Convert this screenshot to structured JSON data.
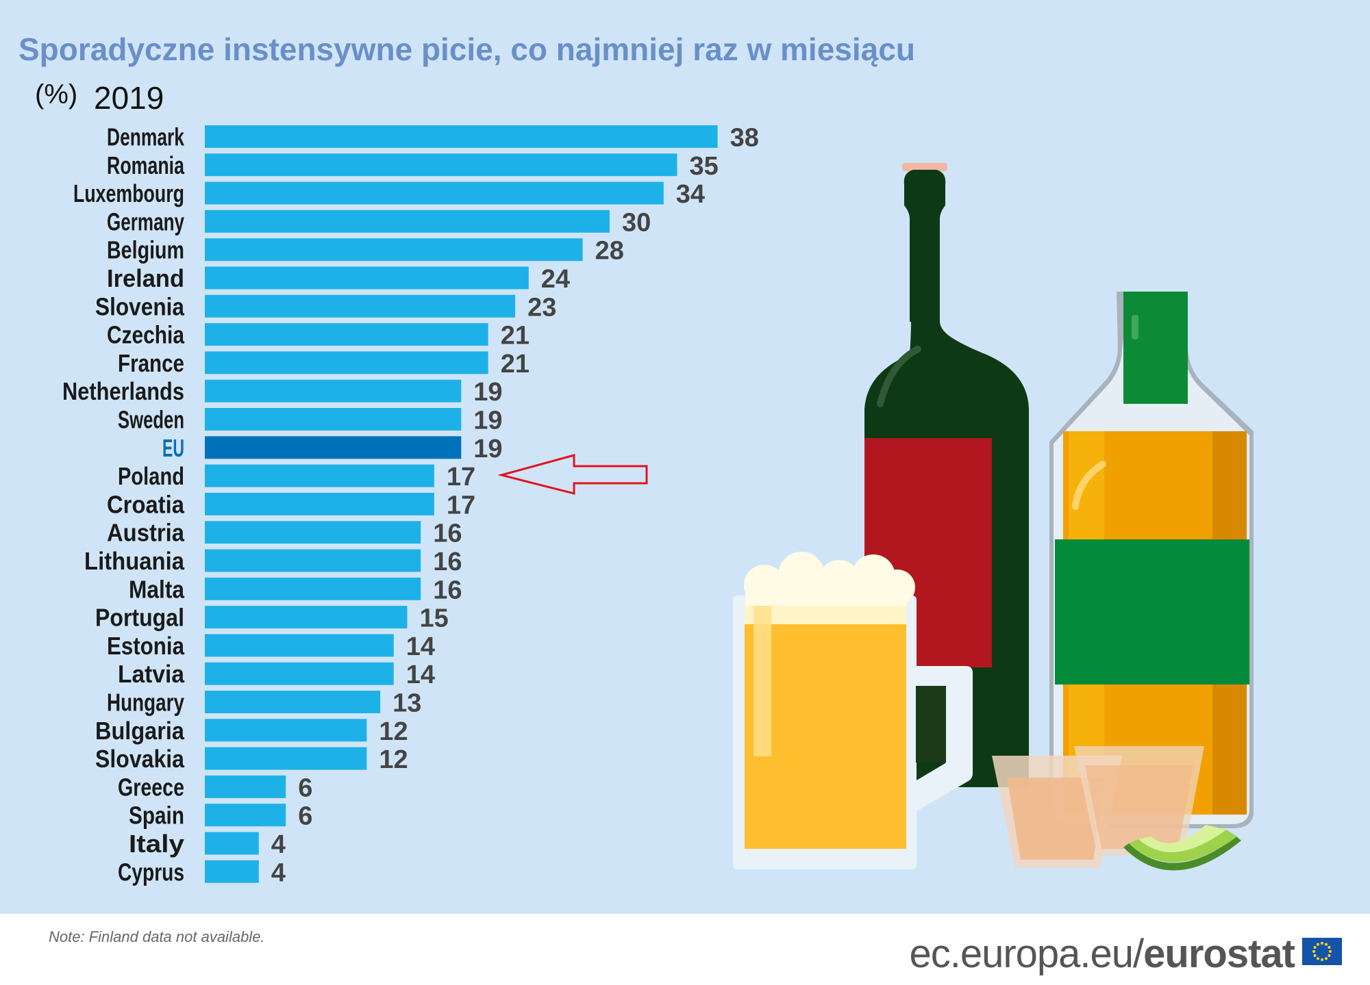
{
  "chart_data": {
    "type": "bar",
    "orientation": "horizontal",
    "title": "Sporadyczne instensywne picie, co najmniej raz w miesiącu",
    "unit": "(%)",
    "year": "2019",
    "categories": [
      "Denmark",
      "Romania",
      "Luxembourg",
      "Germany",
      "Belgium",
      "Ireland",
      "Slovenia",
      "Czechia",
      "France",
      "Netherlands",
      "Sweden",
      "EU",
      "Poland",
      "Croatia",
      "Austria",
      "Lithuania",
      "Malta",
      "Portugal",
      "Estonia",
      "Latvia",
      "Hungary",
      "Bulgaria",
      "Slovakia",
      "Greece",
      "Spain",
      "Italy",
      "Cyprus"
    ],
    "values": [
      38,
      35,
      34,
      30,
      28,
      24,
      23,
      21,
      21,
      19,
      19,
      19,
      17,
      17,
      16,
      16,
      16,
      15,
      14,
      14,
      13,
      12,
      12,
      6,
      6,
      4,
      4
    ],
    "highlight": "EU",
    "arrow_target": "Poland",
    "colors": {
      "bar": "#1eb1e7",
      "bar_highlight": "#0071bb",
      "highlight_label": "#0a6eb4",
      "arrow": "#e0141e",
      "title": "#6a8fc8"
    }
  },
  "note": "Note: Finland data not available.",
  "footer": {
    "domain": "ec.europa.eu/",
    "brand": "eurostat",
    "flag_icon": "eu-flag-icon"
  },
  "illustration": [
    "wine-bottle-icon",
    "whisky-bottle-icon",
    "beer-mug-icon",
    "shot-glass-icon",
    "lime-slice-icon"
  ]
}
